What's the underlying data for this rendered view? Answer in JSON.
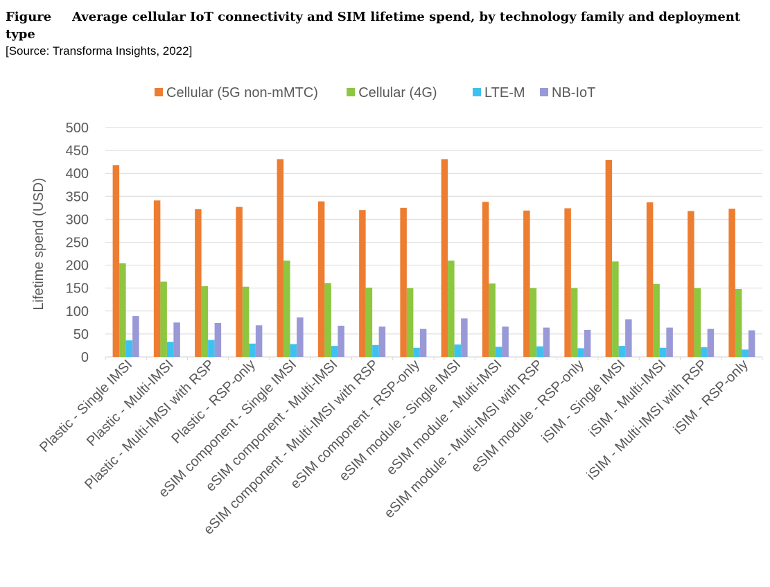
{
  "figure": {
    "label": "Figure",
    "title": "Average cellular IoT connectivity and SIM lifetime spend, by technology family and deployment type",
    "source": "[Source: Transforma Insights, 2022]"
  },
  "colors": {
    "Cellular (5G non-mMTC)": "#ED7D31",
    "Cellular (4G)": "#8DC63F",
    "LTE-M": "#3FC1F0",
    "NB-IoT": "#9999D8",
    "grid": "#D9D9D9",
    "axis": "#595959"
  },
  "chart_data": {
    "type": "bar",
    "title": "",
    "xlabel": "",
    "ylabel": "Lifetime spend (USD)",
    "ylim": [
      0,
      500
    ],
    "yticks": [
      0,
      50,
      100,
      150,
      200,
      250,
      300,
      350,
      400,
      450,
      500
    ],
    "grid": true,
    "legend_position": "top",
    "categories": [
      "Plastic - Single IMSI",
      "Plastic - Multi-IMSI",
      "Plastic - Multi-IMSI with RSP",
      "Plastic - RSP-only",
      "eSIM component - Single IMSI",
      "eSIM component - Multi-IMSI",
      "eSIM component - Multi-IMSI with RSP",
      "eSIM component - RSP-only",
      "eSIM module - Single IMSI",
      "eSIM module - Multi-IMSI",
      "eSIM module - Multi-IMSI with RSP",
      "eSIM module - RSP-only",
      "iSIM - Single IMSI",
      "iSIM - Multi-IMSI",
      "iSIM - Multi-IMSI with RSP",
      "iSIM - RSP-only"
    ],
    "series": [
      {
        "name": "Cellular (5G non-mMTC)",
        "values": [
          418,
          341,
          322,
          327,
          431,
          339,
          320,
          325,
          431,
          338,
          319,
          324,
          429,
          337,
          318,
          323
        ]
      },
      {
        "name": "Cellular (4G)",
        "values": [
          204,
          164,
          154,
          153,
          210,
          161,
          151,
          150,
          210,
          160,
          150,
          150,
          208,
          159,
          150,
          148
        ]
      },
      {
        "name": "LTE-M",
        "values": [
          36,
          33,
          37,
          29,
          28,
          24,
          26,
          20,
          27,
          22,
          23,
          19,
          24,
          20,
          21,
          16
        ]
      },
      {
        "name": "NB-IoT",
        "values": [
          89,
          75,
          74,
          69,
          86,
          68,
          66,
          61,
          84,
          66,
          64,
          59,
          82,
          64,
          61,
          58
        ]
      }
    ]
  }
}
